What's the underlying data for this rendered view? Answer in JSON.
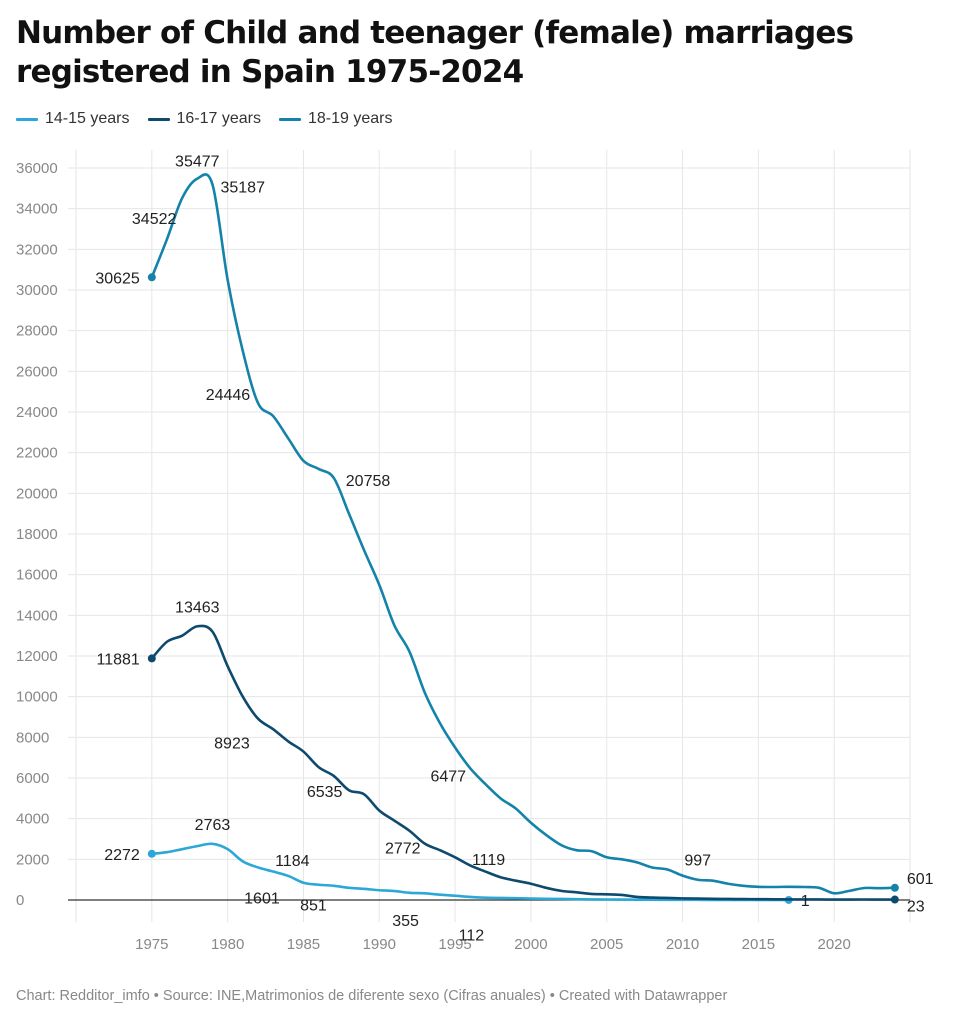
{
  "title": "Number of Child and teenager (female) marriages registered in Spain 1975-2024",
  "footer": "Chart: Redditor_imfo • Source: INE,Matrimonios de diferente sexo (Cifras anuales) • Created with Datawrapper",
  "colors": {
    "s1": "#2ba8d8",
    "s2": "#0d4a6e",
    "s3": "#1383aa"
  },
  "chart_data": {
    "type": "line",
    "xlim": [
      1970,
      2025
    ],
    "ylim": [
      0,
      36000
    ],
    "yticks": [
      0,
      2000,
      4000,
      6000,
      8000,
      10000,
      12000,
      14000,
      16000,
      18000,
      20000,
      22000,
      24000,
      26000,
      28000,
      30000,
      32000,
      34000,
      36000
    ],
    "xticks": [
      1975,
      1980,
      1985,
      1990,
      1995,
      2000,
      2005,
      2010,
      2015,
      2020
    ],
    "grid": true,
    "legend": "top-left",
    "series": [
      {
        "name": "14-15 years",
        "color": "#2ba8d8",
        "points": [
          [
            1975,
            2272
          ],
          [
            1976,
            2350
          ],
          [
            1977,
            2500
          ],
          [
            1978,
            2650
          ],
          [
            1979,
            2763
          ],
          [
            1980,
            2500
          ],
          [
            1981,
            1900
          ],
          [
            1982,
            1601
          ],
          [
            1983,
            1400
          ],
          [
            1984,
            1184
          ],
          [
            1985,
            851
          ],
          [
            1986,
            750
          ],
          [
            1987,
            700
          ],
          [
            1988,
            600
          ],
          [
            1989,
            550
          ],
          [
            1990,
            480
          ],
          [
            1991,
            440
          ],
          [
            1992,
            355
          ],
          [
            1993,
            330
          ],
          [
            1994,
            260
          ],
          [
            1995,
            210
          ],
          [
            1996,
            150
          ],
          [
            1997,
            112
          ],
          [
            1998,
            100
          ],
          [
            1999,
            90
          ],
          [
            2000,
            70
          ],
          [
            2001,
            60
          ],
          [
            2002,
            50
          ],
          [
            2003,
            40
          ],
          [
            2004,
            30
          ],
          [
            2005,
            25
          ],
          [
            2006,
            20
          ],
          [
            2007,
            15
          ],
          [
            2008,
            12
          ],
          [
            2009,
            10
          ],
          [
            2010,
            8
          ],
          [
            2011,
            6
          ],
          [
            2012,
            5
          ],
          [
            2013,
            4
          ],
          [
            2014,
            3
          ],
          [
            2015,
            2
          ],
          [
            2016,
            2
          ],
          [
            2017,
            1
          ]
        ],
        "labels": [
          {
            "x": 1975,
            "value": "2272",
            "dx": -12,
            "dy": 6,
            "anchor": "end"
          },
          {
            "x": 1979,
            "value": "2763",
            "dx": 0,
            "dy": -14,
            "anchor": "middle"
          },
          {
            "x": 1984,
            "value": "1184",
            "dx": 4,
            "dy": -10,
            "anchor": "middle"
          },
          {
            "x": 1982,
            "value": "1601",
            "dx": 4,
            "dy": 36,
            "anchor": "middle"
          },
          {
            "x": 1985,
            "value": "851",
            "dx": 10,
            "dy": 28,
            "anchor": "middle"
          },
          {
            "x": 1992,
            "value": "355",
            "dx": -4,
            "dy": 33,
            "anchor": "middle"
          },
          {
            "x": 1997,
            "value": "112",
            "dx": -14,
            "dy": 43,
            "anchor": "middle"
          },
          {
            "x": 2017,
            "value": "1",
            "dx": 12,
            "dy": 6,
            "anchor": "start"
          }
        ]
      },
      {
        "name": "16-17 years",
        "color": "#0d4a6e",
        "points": [
          [
            1975,
            11881
          ],
          [
            1976,
            12700
          ],
          [
            1977,
            13000
          ],
          [
            1978,
            13463
          ],
          [
            1979,
            13200
          ],
          [
            1980,
            11500
          ],
          [
            1981,
            10000
          ],
          [
            1982,
            8923
          ],
          [
            1983,
            8400
          ],
          [
            1984,
            7800
          ],
          [
            1985,
            7300
          ],
          [
            1986,
            6535
          ],
          [
            1987,
            6100
          ],
          [
            1988,
            5400
          ],
          [
            1989,
            5200
          ],
          [
            1990,
            4400
          ],
          [
            1991,
            3900
          ],
          [
            1992,
            3400
          ],
          [
            1993,
            2772
          ],
          [
            1994,
            2450
          ],
          [
            1995,
            2100
          ],
          [
            1996,
            1700
          ],
          [
            1997,
            1400
          ],
          [
            1998,
            1119
          ],
          [
            1999,
            950
          ],
          [
            2000,
            800
          ],
          [
            2001,
            600
          ],
          [
            2002,
            450
          ],
          [
            2003,
            380
          ],
          [
            2004,
            300
          ],
          [
            2005,
            280
          ],
          [
            2006,
            250
          ],
          [
            2007,
            150
          ],
          [
            2008,
            120
          ],
          [
            2009,
            100
          ],
          [
            2010,
            80
          ],
          [
            2011,
            70
          ],
          [
            2012,
            60
          ],
          [
            2013,
            50
          ],
          [
            2014,
            45
          ],
          [
            2015,
            40
          ],
          [
            2016,
            35
          ],
          [
            2017,
            30
          ],
          [
            2018,
            28
          ],
          [
            2019,
            26
          ],
          [
            2020,
            20
          ],
          [
            2021,
            22
          ],
          [
            2022,
            24
          ],
          [
            2023,
            23
          ],
          [
            2024,
            23
          ]
        ],
        "labels": [
          {
            "x": 1975,
            "value": "11881",
            "dx": -12,
            "dy": 6,
            "anchor": "end"
          },
          {
            "x": 1978,
            "value": "13463",
            "dx": 0,
            "dy": -14,
            "anchor": "middle"
          },
          {
            "x": 1982,
            "value": "8923",
            "dx": -26,
            "dy": 30,
            "anchor": "middle"
          },
          {
            "x": 1986,
            "value": "6535",
            "dx": 6,
            "dy": 30,
            "anchor": "middle"
          },
          {
            "x": 1993,
            "value": "2772",
            "dx": -22,
            "dy": 10,
            "anchor": "middle"
          },
          {
            "x": 1998,
            "value": "1119",
            "dx": -12,
            "dy": -12,
            "anchor": "middle"
          },
          {
            "x": 2024,
            "value": "23",
            "dx": 12,
            "dy": 12,
            "anchor": "start"
          }
        ]
      },
      {
        "name": "18-19 years",
        "color": "#1383aa",
        "points": [
          [
            1975,
            30625
          ],
          [
            1976,
            32500
          ],
          [
            1977,
            34522
          ],
          [
            1978,
            35477
          ],
          [
            1979,
            35187
          ],
          [
            1980,
            30500
          ],
          [
            1981,
            27000
          ],
          [
            1982,
            24446
          ],
          [
            1983,
            23800
          ],
          [
            1984,
            22700
          ],
          [
            1985,
            21600
          ],
          [
            1986,
            21200
          ],
          [
            1987,
            20758
          ],
          [
            1988,
            19000
          ],
          [
            1989,
            17200
          ],
          [
            1990,
            15500
          ],
          [
            1991,
            13500
          ],
          [
            1992,
            12200
          ],
          [
            1993,
            10200
          ],
          [
            1994,
            8700
          ],
          [
            1995,
            7500
          ],
          [
            1996,
            6477
          ],
          [
            1997,
            5700
          ],
          [
            1998,
            5000
          ],
          [
            1999,
            4500
          ],
          [
            2000,
            3800
          ],
          [
            2001,
            3200
          ],
          [
            2002,
            2700
          ],
          [
            2003,
            2450
          ],
          [
            2004,
            2400
          ],
          [
            2005,
            2100
          ],
          [
            2006,
            2000
          ],
          [
            2007,
            1850
          ],
          [
            2008,
            1600
          ],
          [
            2009,
            1500
          ],
          [
            2010,
            1200
          ],
          [
            2011,
            997
          ],
          [
            2012,
            950
          ],
          [
            2013,
            800
          ],
          [
            2014,
            700
          ],
          [
            2015,
            650
          ],
          [
            2016,
            640
          ],
          [
            2017,
            650
          ],
          [
            2018,
            640
          ],
          [
            2019,
            600
          ],
          [
            2020,
            330
          ],
          [
            2021,
            450
          ],
          [
            2022,
            590
          ],
          [
            2023,
            580
          ],
          [
            2024,
            601
          ]
        ],
        "labels": [
          {
            "x": 1975,
            "value": "30625",
            "dx": -12,
            "dy": 6,
            "anchor": "end"
          },
          {
            "x": 1977,
            "value": "34522",
            "dx": -28,
            "dy": 26,
            "anchor": "middle"
          },
          {
            "x": 1978,
            "value": "35477",
            "dx": 0,
            "dy": -12,
            "anchor": "middle"
          },
          {
            "x": 1979,
            "value": "35187",
            "dx": 8,
            "dy": 8,
            "anchor": "start"
          },
          {
            "x": 1982,
            "value": "24446",
            "dx": -30,
            "dy": -3,
            "anchor": "middle"
          },
          {
            "x": 1987,
            "value": "20758",
            "dx": 12,
            "dy": 8,
            "anchor": "start"
          },
          {
            "x": 1996,
            "value": "6477",
            "dx": -22,
            "dy": 13,
            "anchor": "middle"
          },
          {
            "x": 2011,
            "value": "997",
            "dx": 0,
            "dy": -14,
            "anchor": "middle"
          },
          {
            "x": 2024,
            "value": "601",
            "dx": 12,
            "dy": -4,
            "anchor": "start"
          }
        ]
      }
    ]
  }
}
